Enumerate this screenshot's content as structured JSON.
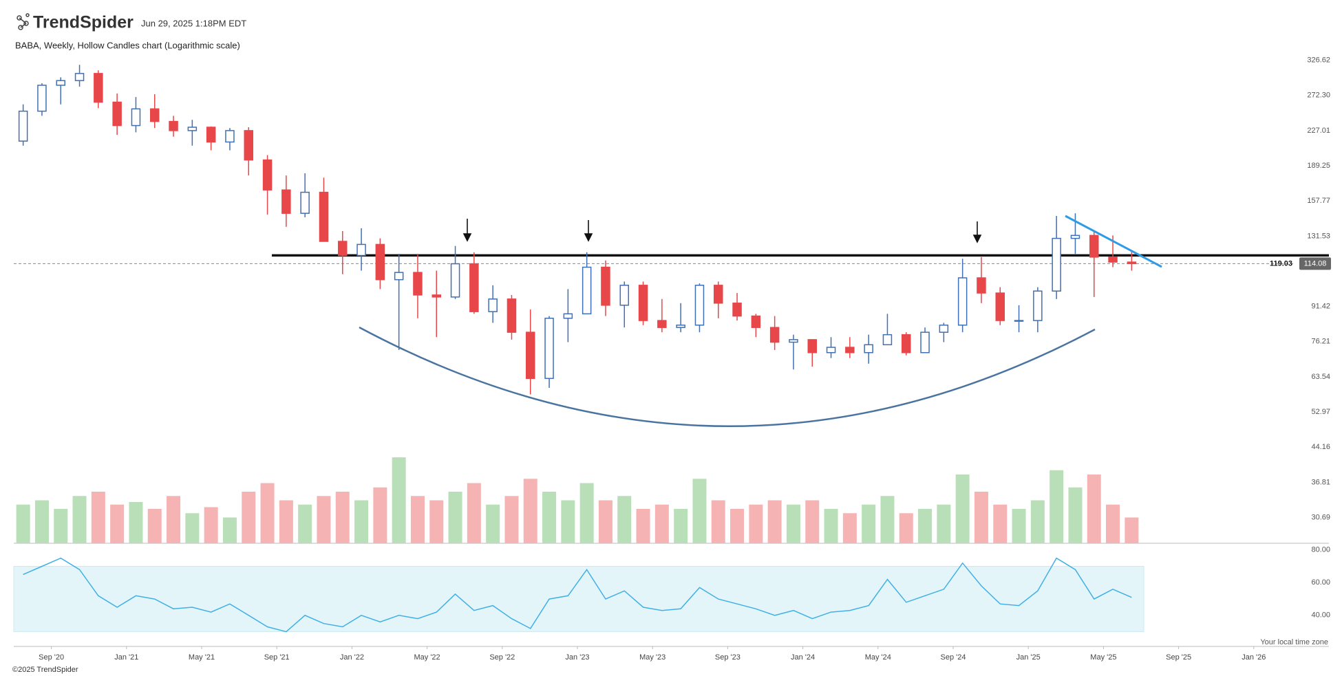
{
  "header": {
    "brand": "TrendSpider",
    "timestamp": "Jun 29, 2025 1:18PM EDT"
  },
  "footer": {
    "copyright": "©2025 TrendSpider",
    "timezone_note": "Your local time zone"
  },
  "chart_data": {
    "type": "candlestick",
    "title": "BABA, Weekly, Hollow Candles chart (Logarithmic scale)",
    "log_scale": true,
    "up_color": "#3f6fb5",
    "down_color": "#e8474a",
    "x": [
      "2020-07",
      "2020-08",
      "2020-09",
      "2020-10",
      "2020-11",
      "2020-12",
      "2021-01",
      "2021-02",
      "2021-03",
      "2021-04",
      "2021-05",
      "2021-06",
      "2021-07",
      "2021-08",
      "2021-09",
      "2021-10",
      "2021-11",
      "2021-12",
      "2022-01",
      "2022-02",
      "2022-03",
      "2022-04",
      "2022-05",
      "2022-06",
      "2022-07",
      "2022-08",
      "2022-09",
      "2022-10",
      "2022-11",
      "2022-12",
      "2023-01",
      "2023-02",
      "2023-03",
      "2023-04",
      "2023-05",
      "2023-06",
      "2023-07",
      "2023-08",
      "2023-09",
      "2023-10",
      "2023-11",
      "2023-12",
      "2024-01",
      "2024-02",
      "2024-03",
      "2024-04",
      "2024-05",
      "2024-06",
      "2024-07",
      "2024-08",
      "2024-09",
      "2024-10",
      "2024-11",
      "2024-12",
      "2025-01",
      "2025-02",
      "2025-03",
      "2025-04",
      "2025-05",
      "2025-06"
    ],
    "open": [
      215,
      251,
      287,
      294,
      305,
      263,
      233,
      254,
      238,
      227,
      231,
      214,
      227,
      195,
      167,
      148,
      165,
      128,
      119,
      126,
      105,
      109,
      97,
      96,
      114,
      89,
      95,
      80,
      63,
      86,
      88,
      112,
      92,
      102,
      85,
      82,
      83,
      102,
      93,
      87,
      82,
      76,
      77,
      72,
      74,
      72,
      75,
      79,
      72,
      80,
      83,
      106,
      98,
      85,
      85,
      99,
      130,
      132,
      118,
      115
    ],
    "high": [
      260,
      290,
      299,
      319,
      310,
      275,
      270,
      274,
      245,
      240,
      232,
      230,
      231,
      200,
      180,
      182,
      178,
      135,
      137,
      130,
      120,
      120,
      110,
      125,
      121,
      102,
      97,
      90,
      87,
      100,
      121,
      116,
      104,
      104,
      95,
      93,
      103,
      104,
      98,
      88,
      87,
      79,
      77,
      78,
      78,
      79,
      88,
      80,
      82,
      84,
      117,
      118,
      101,
      92,
      101,
      146,
      148,
      135,
      132,
      122
    ],
    "low": [
      210,
      245,
      260,
      285,
      255,
      222,
      225,
      230,
      220,
      210,
      205,
      205,
      180,
      147,
      138,
      145,
      128,
      108,
      110,
      100,
      73,
      86,
      78,
      95,
      88,
      84,
      77,
      58,
      60,
      76,
      88,
      87,
      82,
      83,
      80,
      80,
      80,
      86,
      85,
      78,
      73,
      66,
      67,
      70,
      70,
      68,
      75,
      71,
      72,
      76,
      80,
      93,
      83,
      80,
      80,
      95,
      120,
      96,
      112,
      110
    ],
    "close": [
      251,
      287,
      294,
      305,
      263,
      233,
      254,
      238,
      227,
      231,
      214,
      227,
      195,
      167,
      148,
      165,
      128,
      119,
      126,
      105,
      109,
      97,
      96,
      114,
      89,
      95,
      80,
      63,
      86,
      88,
      112,
      92,
      102,
      85,
      82,
      83,
      102,
      93,
      87,
      82,
      76,
      77,
      72,
      74,
      72,
      75,
      79,
      72,
      80,
      83,
      106,
      98,
      85,
      85,
      99,
      130,
      132,
      118,
      115,
      114.08
    ],
    "xlim": [
      "2020-07",
      "2026-05"
    ],
    "xticks": [
      {
        "value": "2020-09",
        "label": "Sep '20"
      },
      {
        "value": "2021-01",
        "label": "Jan '21"
      },
      {
        "value": "2021-05",
        "label": "May '21"
      },
      {
        "value": "2021-09",
        "label": "Sep '21"
      },
      {
        "value": "2022-01",
        "label": "Jan '22"
      },
      {
        "value": "2022-05",
        "label": "May '22"
      },
      {
        "value": "2022-09",
        "label": "Sep '22"
      },
      {
        "value": "2023-01",
        "label": "Jan '23"
      },
      {
        "value": "2023-05",
        "label": "May '23"
      },
      {
        "value": "2023-09",
        "label": "Sep '23"
      },
      {
        "value": "2024-01",
        "label": "Jan '24"
      },
      {
        "value": "2024-05",
        "label": "May '24"
      },
      {
        "value": "2024-09",
        "label": "Sep '24"
      },
      {
        "value": "2025-01",
        "label": "Jan '25"
      },
      {
        "value": "2025-05",
        "label": "May '25"
      },
      {
        "value": "2025-09",
        "label": "Sep '25"
      },
      {
        "value": "2026-01",
        "label": "Jan '26"
      }
    ],
    "ylim": [
      26.86,
      341.6
    ],
    "yticks": [
      326.62,
      {
        "value": 272.3,
        "label": "272.30"
      },
      227.01,
      189.25,
      157.77,
      131.53,
      91.42,
      76.21,
      63.54,
      52.97,
      44.16,
      36.81,
      30.69
    ],
    "resistance": 119.03,
    "last_price": 114.08,
    "volume": {
      "up_color": "#b9dfb9",
      "down_color": "#f6b3b3",
      "values": [
        45,
        50,
        40,
        55,
        60,
        45,
        48,
        40,
        55,
        35,
        42,
        30,
        60,
        70,
        50,
        45,
        55,
        60,
        50,
        65,
        100,
        55,
        50,
        60,
        70,
        45,
        55,
        75,
        60,
        50,
        70,
        50,
        55,
        40,
        45,
        40,
        75,
        50,
        40,
        45,
        50,
        45,
        50,
        40,
        35,
        45,
        55,
        35,
        40,
        45,
        80,
        60,
        45,
        40,
        50,
        85,
        65,
        80,
        45,
        30
      ]
    },
    "rsi": {
      "color": "#3fb0e6",
      "band_color": "#e3f5f9",
      "band": [
        30,
        70
      ],
      "ylim": [
        21,
        82
      ],
      "yticks": [
        {
          "value": 80,
          "label": "80.00"
        },
        {
          "value": 60,
          "label": "60.00"
        },
        {
          "value": 40,
          "label": "40.00"
        }
      ],
      "values": [
        65,
        70,
        75,
        68,
        52,
        45,
        52,
        50,
        44,
        45,
        42,
        47,
        40,
        33,
        30,
        40,
        35,
        33,
        40,
        36,
        40,
        38,
        42,
        53,
        43,
        46,
        38,
        32,
        50,
        52,
        68,
        50,
        55,
        45,
        43,
        44,
        57,
        50,
        47,
        44,
        40,
        43,
        38,
        42,
        43,
        46,
        62,
        48,
        52,
        56,
        72,
        58,
        47,
        46,
        55,
        75,
        68,
        50,
        56,
        51
      ]
    }
  }
}
